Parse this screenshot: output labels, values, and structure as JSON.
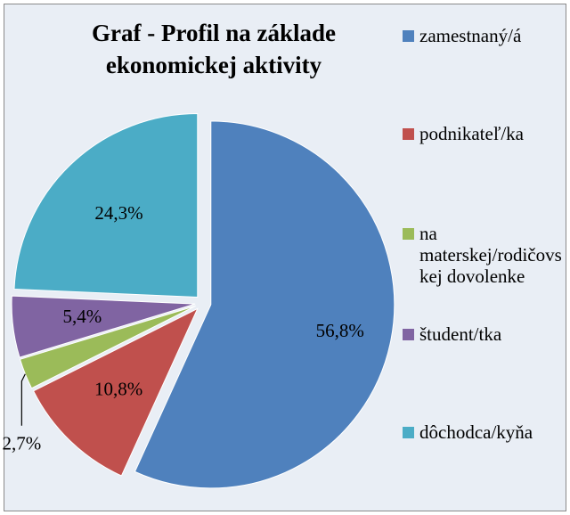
{
  "chart_data": {
    "type": "pie",
    "title": [
      "Graf - Profil na základe",
      "ekonomickej aktivity"
    ],
    "categories": [
      "zamestnaný/á",
      "podnikateľ/ka",
      "na materskej/rodičovskej dovolenke",
      "študent/tka",
      "dôchodca/kyňa"
    ],
    "values": [
      56.8,
      10.8,
      2.7,
      5.4,
      24.3
    ],
    "value_labels": [
      "56,8%",
      "10,8%",
      "2,7%",
      "5,4%",
      "24,3%"
    ],
    "colors": [
      "#4f81bd",
      "#c0504d",
      "#9bbb59",
      "#8064a2",
      "#4bacc6"
    ],
    "legend": "right"
  }
}
